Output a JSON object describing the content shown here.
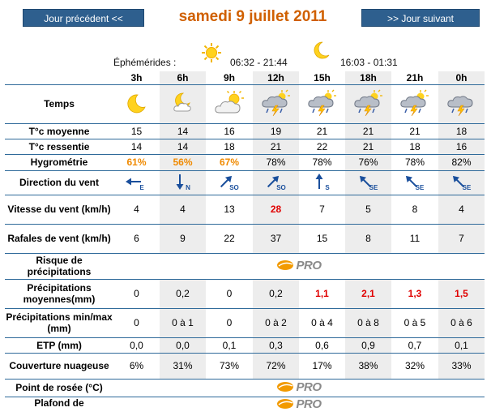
{
  "nav": {
    "prev_label": "Jour précédent <<",
    "next_label": ">> Jour suivant",
    "date_title": "samedi 9 juillet 2011"
  },
  "ephemeris": {
    "label": "Éphémérides :",
    "sun_icon": "sun-icon",
    "sun_times": "06:32 - 21:44",
    "moon_icon": "moon-icon",
    "moon_times": "16:03 - 01:31"
  },
  "hours": [
    "3h",
    "6h",
    "9h",
    "12h",
    "15h",
    "18h",
    "21h",
    "0h"
  ],
  "rows": {
    "temps": {
      "label": "Temps",
      "icons": [
        "moon-night-icon",
        "moon-cloud-icon",
        "sun-cloud-icon",
        "thunderstorm-icon",
        "thunderstorm-icon",
        "thunderstorm-icon",
        "thunderstorm-icon",
        "thunderstorm-icon"
      ]
    },
    "temp_moyenne": {
      "label": "T°c moyenne",
      "values": [
        "15",
        "14",
        "16",
        "19",
        "21",
        "21",
        "21",
        "18"
      ]
    },
    "temp_ressentie": {
      "label": "T°c ressentie",
      "values": [
        "14",
        "14",
        "18",
        "21",
        "22",
        "21",
        "18",
        "16"
      ]
    },
    "hygrometrie": {
      "label": "Hygrométrie",
      "values": [
        "61%",
        "56%",
        "67%",
        "78%",
        "78%",
        "76%",
        "78%",
        "82%"
      ]
    },
    "direction_vent": {
      "label": "Direction du vent",
      "values": [
        "E",
        "N",
        "SO",
        "SO",
        "S",
        "SE",
        "SE",
        "SE"
      ],
      "angles": [
        270,
        180,
        45,
        45,
        0,
        315,
        315,
        315
      ]
    },
    "vitesse_vent": {
      "label": "Vitesse du vent (km/h)",
      "values": [
        "4",
        "4",
        "13",
        "28",
        "7",
        "5",
        "8",
        "4"
      ]
    },
    "rafales": {
      "label": "Rafales de vent (km/h)",
      "values": [
        "6",
        "9",
        "22",
        "37",
        "15",
        "8",
        "11",
        "7"
      ]
    },
    "risque_precip": {
      "label": "Risque de précipitations",
      "badge": "PRO"
    },
    "precip_moyennes": {
      "label": "Précipitations moyennes(mm)",
      "values": [
        "0",
        "0,2",
        "0",
        "0,2",
        "1,1",
        "2,1",
        "1,3",
        "1,5"
      ]
    },
    "precip_minmax": {
      "label": "Précipitations min/max (mm)",
      "values": [
        "0",
        "0 à 1",
        "0",
        "0 à 2",
        "0 à 4",
        "0 à 8",
        "0 à 5",
        "0 à 6"
      ]
    },
    "etp": {
      "label": "ETP (mm)",
      "values": [
        "0,0",
        "0,0",
        "0,1",
        "0,3",
        "0,6",
        "0,9",
        "0,7",
        "0,1"
      ]
    },
    "couverture": {
      "label": "Couverture nuageuse",
      "values": [
        "6%",
        "31%",
        "73%",
        "72%",
        "17%",
        "38%",
        "32%",
        "33%"
      ]
    },
    "point_rosee": {
      "label": "Point de rosée (°C)",
      "badge": "PRO"
    },
    "plafond": {
      "label": "Plafond de",
      "badge": "PRO"
    }
  }
}
